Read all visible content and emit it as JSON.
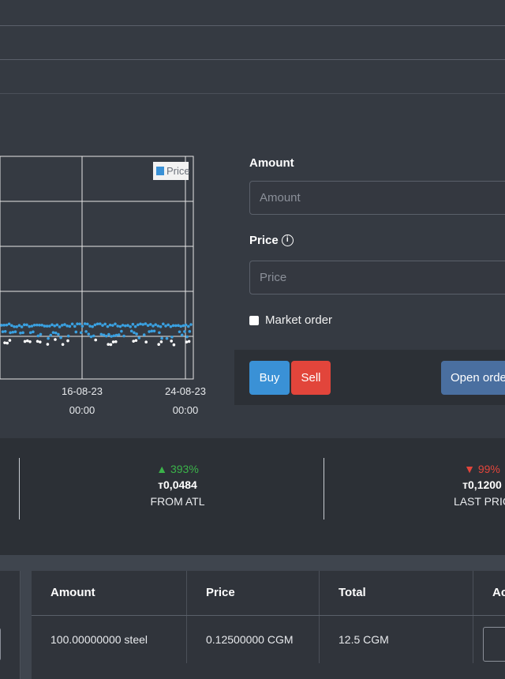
{
  "chart_data": {
    "type": "scatter",
    "x_tick_labels": [
      {
        "date": "16-08-23",
        "time": "00:00"
      },
      {
        "date": "24-08-23",
        "time": "00:00"
      }
    ],
    "legend": [
      "Price"
    ],
    "legend_placement": "top-right",
    "grid": true,
    "series_color": "#3aa0e0"
  },
  "order_form": {
    "amount_label": "Amount",
    "amount_placeholder": "Amount",
    "price_label": "Price",
    "price_placeholder": "Price",
    "market_order_label": "Market order",
    "buy_label": "Buy",
    "sell_label": "Sell",
    "open_orders_label": "Open orde"
  },
  "stats": [
    {
      "change": "393%",
      "direction": "up",
      "value": "т0,0484",
      "label": "FROM ATL"
    },
    {
      "change": "99%",
      "direction": "down",
      "value": "т0,1200",
      "label": "LAST PRIC"
    }
  ],
  "orders_table": {
    "headers": [
      "Amount",
      "Price",
      "Total",
      "Acti"
    ],
    "rows": [
      {
        "amount": "100.00000000 steel",
        "price": "0.12500000 CGM",
        "total": "12.5 CGM"
      }
    ]
  }
}
